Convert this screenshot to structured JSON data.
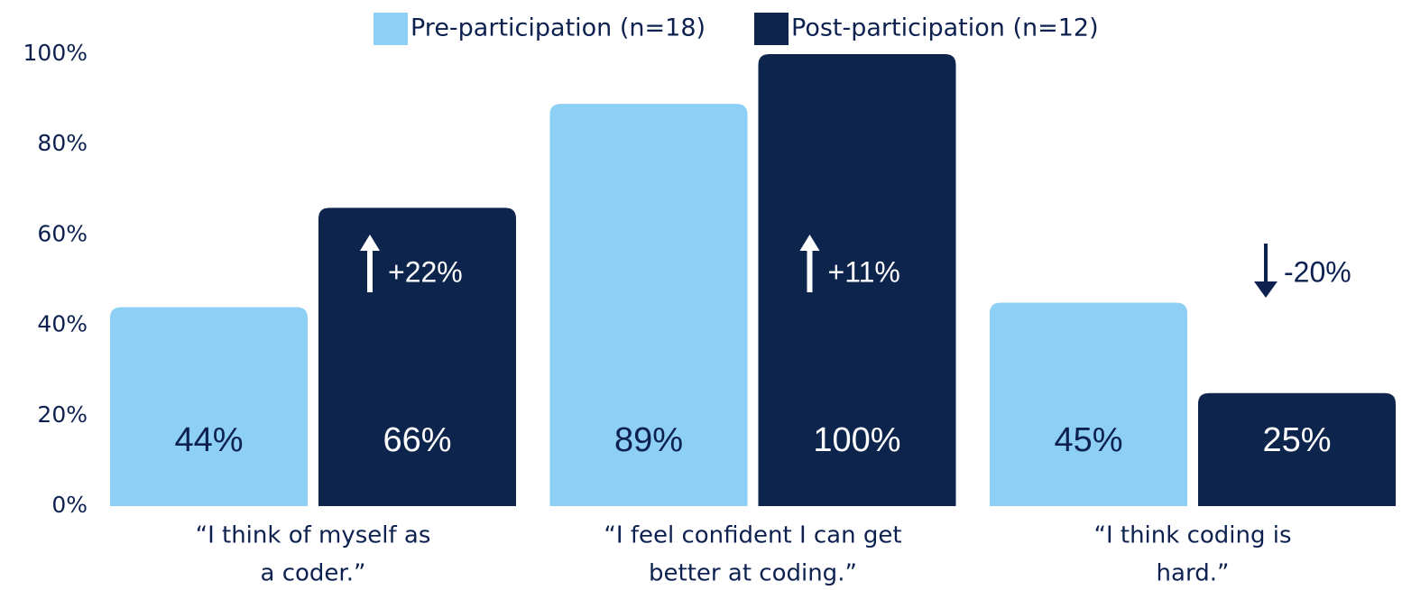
{
  "chart_data": {
    "type": "bar",
    "categories": [
      [
        "“I think of myself as",
        "a coder.”"
      ],
      [
        "“I feel confident I can get",
        "better at coding.”"
      ],
      [
        "“I think coding is",
        "hard.”"
      ]
    ],
    "series": [
      {
        "name": "Pre-participation (n=18)",
        "color": "#8ecff5",
        "values": [
          44,
          89,
          45
        ],
        "value_labels": [
          "44%",
          "89%",
          "45%"
        ]
      },
      {
        "name": "Post-participation (n=12)",
        "color": "#0d244d",
        "values": [
          66,
          100,
          25
        ],
        "value_labels": [
          "66%",
          "100%",
          "25%"
        ]
      }
    ],
    "ylim": [
      0,
      100
    ],
    "yticks": [
      {
        "value": 0,
        "label": "0%"
      },
      {
        "value": 20,
        "label": "20%"
      },
      {
        "value": 40,
        "label": "40%"
      },
      {
        "value": 60,
        "label": "60%"
      },
      {
        "value": 80,
        "label": "80%"
      },
      {
        "value": 100,
        "label": "100%"
      }
    ],
    "annotations": [
      {
        "text": "+22%",
        "direction": "up"
      },
      {
        "text": "+11%",
        "direction": "up"
      },
      {
        "text": "-20%",
        "direction": "down"
      }
    ],
    "legend": "top"
  }
}
